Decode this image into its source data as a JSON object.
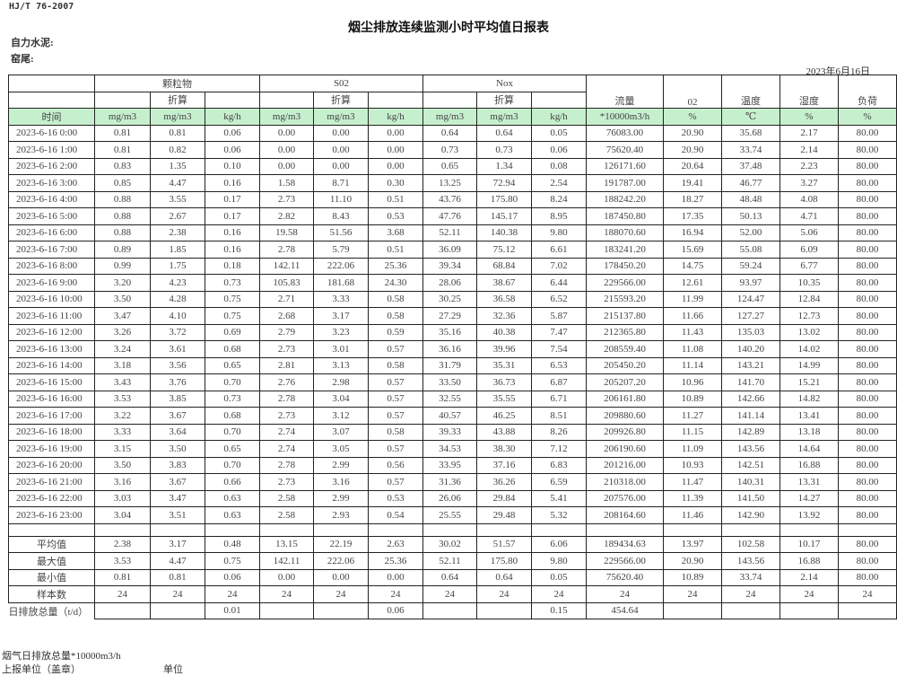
{
  "header": {
    "standard": "HJ/T  76-2007",
    "title": "烟尘排放连续监测小时平均值日报表",
    "company": "自力水泥:",
    "kiln": "窑尾:",
    "date": "2023年6月16日"
  },
  "groups": {
    "particulate": "颗粒物",
    "so2": "S02",
    "nox": "Nox",
    "converted": "折算",
    "flow": "流量",
    "o2": "02",
    "temp": "温度",
    "humidity": "湿度",
    "load": "负荷"
  },
  "units": [
    "时间",
    "mg/m3",
    "mg/m3",
    "kg/h",
    "mg/m3",
    "mg/m3",
    "kg/h",
    "mg/m3",
    "mg/m3",
    "kg/h",
    "*10000m3/h",
    "%",
    "℃",
    "%",
    "%"
  ],
  "rows": [
    [
      "2023-6-16 0:00",
      "0.81",
      "0.81",
      "0.06",
      "0.00",
      "0.00",
      "0.00",
      "0.64",
      "0.64",
      "0.05",
      "76083.00",
      "20.90",
      "35.68",
      "2.17",
      "80.00"
    ],
    [
      "2023-6-16 1:00",
      "0.81",
      "0.82",
      "0.06",
      "0.00",
      "0.00",
      "0.00",
      "0.73",
      "0.73",
      "0.06",
      "75620.40",
      "20.90",
      "33.74",
      "2.14",
      "80.00"
    ],
    [
      "2023-6-16 2:00",
      "0.83",
      "1.35",
      "0.10",
      "0.00",
      "0.00",
      "0.00",
      "0.65",
      "1.34",
      "0.08",
      "126171.60",
      "20.64",
      "37.48",
      "2.23",
      "80.00"
    ],
    [
      "2023-6-16 3:00",
      "0.85",
      "4.47",
      "0.16",
      "1.58",
      "8.71",
      "0.30",
      "13.25",
      "72.94",
      "2.54",
      "191787.00",
      "19.41",
      "46.77",
      "3.27",
      "80.00"
    ],
    [
      "2023-6-16 4:00",
      "0.88",
      "3.55",
      "0.17",
      "2.73",
      "11.10",
      "0.51",
      "43.76",
      "175.80",
      "8.24",
      "188242.20",
      "18.27",
      "48.48",
      "4.08",
      "80.00"
    ],
    [
      "2023-6-16 5:00",
      "0.88",
      "2.67",
      "0.17",
      "2.82",
      "8.43",
      "0.53",
      "47.76",
      "145.17",
      "8.95",
      "187450.80",
      "17.35",
      "50.13",
      "4.71",
      "80.00"
    ],
    [
      "2023-6-16 6:00",
      "0.88",
      "2.38",
      "0.16",
      "19.58",
      "51.56",
      "3.68",
      "52.11",
      "140.38",
      "9.80",
      "188070.60",
      "16.94",
      "52.00",
      "5.06",
      "80.00"
    ],
    [
      "2023-6-16 7:00",
      "0.89",
      "1.85",
      "0.16",
      "2.78",
      "5.79",
      "0.51",
      "36.09",
      "75.12",
      "6.61",
      "183241.20",
      "15.69",
      "55.08",
      "6.09",
      "80.00"
    ],
    [
      "2023-6-16 8:00",
      "0.99",
      "1.75",
      "0.18",
      "142.11",
      "222.06",
      "25.36",
      "39.34",
      "68.84",
      "7.02",
      "178450.20",
      "14.75",
      "59.24",
      "6.77",
      "80.00"
    ],
    [
      "2023-6-16 9:00",
      "3.20",
      "4.23",
      "0.73",
      "105.83",
      "181.68",
      "24.30",
      "28.06",
      "38.67",
      "6.44",
      "229566.00",
      "12.61",
      "93.97",
      "10.35",
      "80.00"
    ],
    [
      "2023-6-16 10:00",
      "3.50",
      "4.28",
      "0.75",
      "2.71",
      "3.33",
      "0.58",
      "30.25",
      "36.58",
      "6.52",
      "215593.20",
      "11.99",
      "124.47",
      "12.84",
      "80.00"
    ],
    [
      "2023-6-16 11:00",
      "3.47",
      "4.10",
      "0.75",
      "2.68",
      "3.17",
      "0.58",
      "27.29",
      "32.36",
      "5.87",
      "215137.80",
      "11.66",
      "127.27",
      "12.73",
      "80.00"
    ],
    [
      "2023-6-16 12:00",
      "3.26",
      "3.72",
      "0.69",
      "2.79",
      "3.23",
      "0.59",
      "35.16",
      "40.38",
      "7.47",
      "212365.80",
      "11.43",
      "135.03",
      "13.02",
      "80.00"
    ],
    [
      "2023-6-16 13:00",
      "3.24",
      "3.61",
      "0.68",
      "2.73",
      "3.01",
      "0.57",
      "36.16",
      "39.96",
      "7.54",
      "208559.40",
      "11.08",
      "140.20",
      "14.02",
      "80.00"
    ],
    [
      "2023-6-16 14:00",
      "3.18",
      "3.56",
      "0.65",
      "2.81",
      "3.13",
      "0.58",
      "31.79",
      "35.31",
      "6.53",
      "205450.20",
      "11.14",
      "143.21",
      "14.99",
      "80.00"
    ],
    [
      "2023-6-16 15:00",
      "3.43",
      "3.76",
      "0.70",
      "2.76",
      "2.98",
      "0.57",
      "33.50",
      "36.73",
      "6.87",
      "205207.20",
      "10.96",
      "141.70",
      "15.21",
      "80.00"
    ],
    [
      "2023-6-16 16:00",
      "3.53",
      "3.85",
      "0.73",
      "2.78",
      "3.04",
      "0.57",
      "32.55",
      "35.55",
      "6.71",
      "206161.80",
      "10.89",
      "142.66",
      "14.82",
      "80.00"
    ],
    [
      "2023-6-16 17:00",
      "3.22",
      "3.67",
      "0.68",
      "2.73",
      "3.12",
      "0.57",
      "40.57",
      "46.25",
      "8.51",
      "209880.60",
      "11.27",
      "141.14",
      "13.41",
      "80.00"
    ],
    [
      "2023-6-16 18:00",
      "3.33",
      "3.64",
      "0.70",
      "2.74",
      "3.07",
      "0.58",
      "39.33",
      "43.88",
      "8.26",
      "209926.80",
      "11.15",
      "142.89",
      "13.18",
      "80.00"
    ],
    [
      "2023-6-16 19:00",
      "3.15",
      "3.50",
      "0.65",
      "2.74",
      "3.05",
      "0.57",
      "34.53",
      "38.30",
      "7.12",
      "206190.60",
      "11.09",
      "143.56",
      "14.64",
      "80.00"
    ],
    [
      "2023-6-16 20:00",
      "3.50",
      "3.83",
      "0.70",
      "2.78",
      "2.99",
      "0.56",
      "33.95",
      "37.16",
      "6.83",
      "201216.00",
      "10.93",
      "142.51",
      "16.88",
      "80.00"
    ],
    [
      "2023-6-16 21:00",
      "3.16",
      "3.67",
      "0.66",
      "2.73",
      "3.16",
      "0.57",
      "31.36",
      "36.26",
      "6.59",
      "210318.00",
      "11.47",
      "140.31",
      "13.31",
      "80.00"
    ],
    [
      "2023-6-16 22:00",
      "3.03",
      "3.47",
      "0.63",
      "2.58",
      "2.99",
      "0.53",
      "26.06",
      "29.84",
      "5.41",
      "207576.00",
      "11.39",
      "141.50",
      "14.27",
      "80.00"
    ],
    [
      "2023-6-16 23:00",
      "3.04",
      "3.51",
      "0.63",
      "2.58",
      "2.93",
      "0.54",
      "25.55",
      "29.48",
      "5.32",
      "208164.60",
      "11.46",
      "142.90",
      "13.92",
      "80.00"
    ]
  ],
  "stats": [
    [
      "平均值",
      "2.38",
      "3.17",
      "0.48",
      "13.15",
      "22.19",
      "2.63",
      "30.02",
      "51.57",
      "6.06",
      "189434.63",
      "13.97",
      "102.58",
      "10.17",
      "80.00"
    ],
    [
      "最大值",
      "3.53",
      "4.47",
      "0.75",
      "142.11",
      "222.06",
      "25.36",
      "52.11",
      "175.80",
      "9.80",
      "229566.00",
      "20.90",
      "143.56",
      "16.88",
      "80.00"
    ],
    [
      "最小值",
      "0.81",
      "0.81",
      "0.06",
      "0.00",
      "0.00",
      "0.00",
      "0.64",
      "0.64",
      "0.05",
      "75620.40",
      "10.89",
      "33.74",
      "2.14",
      "80.00"
    ],
    [
      "样本数",
      "24",
      "24",
      "24",
      "24",
      "24",
      "24",
      "24",
      "24",
      "24",
      "24",
      "24",
      "24",
      "24",
      "24"
    ]
  ],
  "daily_total": [
    "日排放总量（t/d）",
    "",
    "",
    "0.01",
    "",
    "",
    "0.06",
    "",
    "",
    "0.15",
    "454.64",
    "",
    "",
    "",
    ""
  ],
  "footer": {
    "flue_gas_total": "烟气日排放总量*10000m3/h",
    "reporting_unit": "上报单位（盖章）",
    "unit": "单位"
  }
}
